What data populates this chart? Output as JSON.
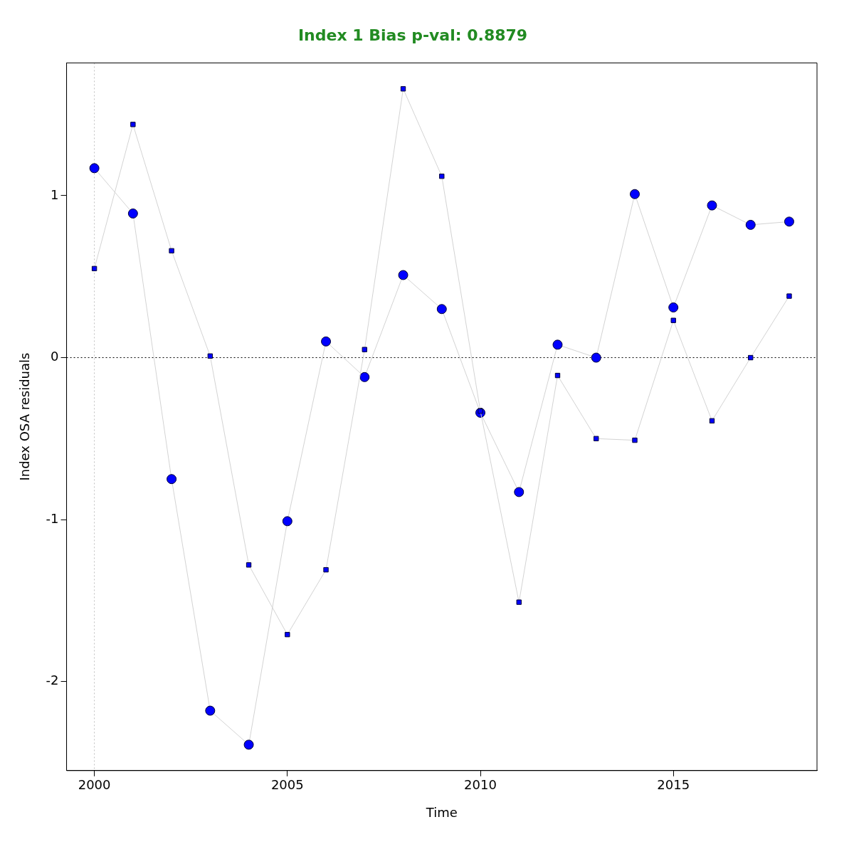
{
  "chart_data": {
    "type": "line",
    "title": "Index 1 Bias p-val: 0.8879",
    "xlabel": "Time",
    "ylabel": "Index OSA residuals",
    "x": [
      2000,
      2001,
      2002,
      2003,
      2004,
      2005,
      2006,
      2007,
      2008,
      2009,
      2010,
      2011,
      2012,
      2013,
      2014,
      2015,
      2016,
      2017,
      2018
    ],
    "series": [
      {
        "color": "#0000ff",
        "marker": "circle",
        "values": [
          1.17,
          0.89,
          -0.75,
          -2.18,
          -2.39,
          -1.01,
          0.1,
          -0.12,
          0.51,
          0.3,
          -0.34,
          -0.83,
          0.08,
          0.0,
          1.01,
          0.31,
          0.94,
          0.82,
          0.84
        ]
      },
      {
        "color": "#0000ff",
        "marker": "square",
        "values": [
          0.55,
          1.44,
          0.66,
          0.01,
          -1.28,
          -1.71,
          -1.31,
          0.05,
          1.66,
          1.12,
          -0.33,
          -1.51,
          -0.11,
          -0.5,
          -0.51,
          0.23,
          -0.39,
          0.0,
          0.38
        ]
      }
    ],
    "xlim": [
      1999.28,
      2018.72
    ],
    "xticks": [
      2000,
      2005,
      2010,
      2015
    ],
    "ylim": [
      -2.55,
      1.82
    ],
    "yticks": [
      -2,
      -1,
      0,
      1
    ],
    "ref_lines": [
      {
        "axis": "y",
        "value": 0,
        "color": "#000000",
        "line_style": "dotted"
      },
      {
        "axis": "x",
        "value": 2000,
        "color": "#bebebe",
        "line_style": "dotted"
      }
    ],
    "grid": false,
    "legend": false
  }
}
